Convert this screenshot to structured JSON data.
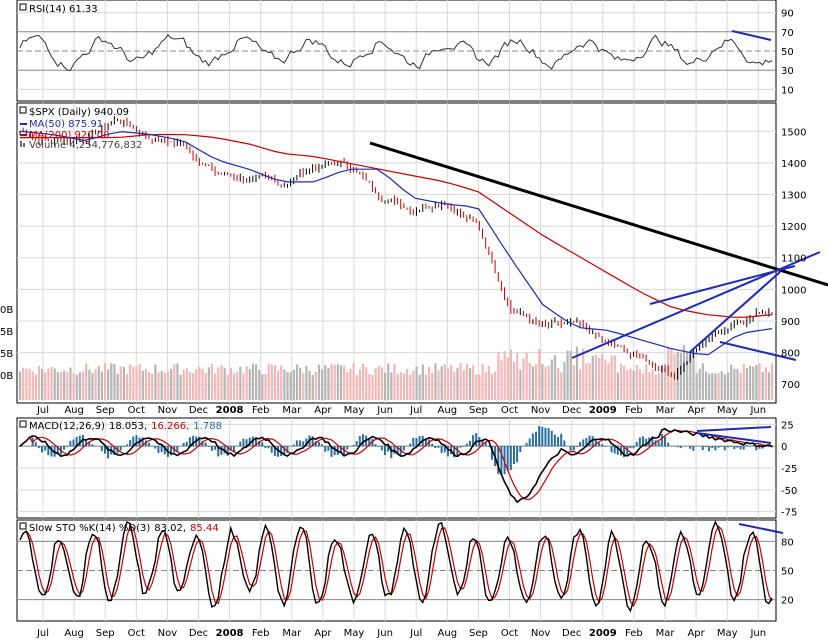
{
  "chart_data": [
    {
      "type": "line",
      "panel": "rsi",
      "title": "RSI(14) 61.33",
      "y_ticks": [
        90,
        70,
        50,
        30,
        10
      ],
      "ylim": [
        0,
        100
      ],
      "reference_lines": [
        70,
        50,
        30
      ],
      "series": [
        {
          "name": "RSI(14)",
          "last": 61.33
        }
      ],
      "annotations": [
        {
          "type": "trendline",
          "color": "#1e2bb4",
          "description": "downward divergence line at right"
        }
      ]
    },
    {
      "type": "line",
      "panel": "price",
      "title": "$SPX (Daily) 940.09",
      "y_ticks": [
        1500,
        1400,
        1300,
        1200,
        1100,
        1000,
        900,
        800,
        700
      ],
      "volume_ticks": [
        "0B",
        "5B",
        "5B",
        "0B"
      ],
      "ylim": [
        650,
        1580
      ],
      "legend": [
        {
          "label": "$SPX (Daily) 940.09",
          "color": "#000000"
        },
        {
          "label": "MA(50) 875.91",
          "color": "#1e2bb4"
        },
        {
          "label": "MA(200) 920.00",
          "color": "#cc0000"
        },
        {
          "label": "Volume 4,254,776,832",
          "color": "#666666"
        }
      ],
      "x": [
        "Jul",
        "Aug",
        "Sep",
        "Oct",
        "Nov",
        "Dec",
        "2008",
        "Feb",
        "Mar",
        "Apr",
        "May",
        "Jun",
        "Jul",
        "Aug",
        "Sep",
        "Oct",
        "Nov",
        "Dec",
        "2009",
        "Feb",
        "Mar",
        "Apr",
        "May",
        "Jun"
      ],
      "price_monthly": [
        1500,
        1470,
        1480,
        1540,
        1480,
        1460,
        1370,
        1350,
        1330,
        1390,
        1400,
        1300,
        1260,
        1290,
        1200,
        950,
        880,
        880,
        820,
        780,
        740,
        840,
        910,
        940
      ],
      "ma50_monthly": [
        1500,
        1490,
        1470,
        1500,
        1490,
        1470,
        1410,
        1380,
        1340,
        1340,
        1380,
        1380,
        1290,
        1270,
        1260,
        1100,
        950,
        880,
        870,
        840,
        810,
        790,
        860,
        876
      ],
      "ma200_monthly": [
        1480,
        1480,
        1480,
        1480,
        1490,
        1490,
        1480,
        1460,
        1430,
        1420,
        1400,
        1380,
        1360,
        1340,
        1310,
        1240,
        1170,
        1110,
        1050,
        990,
        940,
        920,
        910,
        920
      ],
      "annotations": [
        {
          "type": "trendline",
          "color": "#000000",
          "description": "long-term downtrend line from May 2008 highs"
        },
        {
          "type": "wedge",
          "color": "#1e2bb4",
          "description": "rising wedge lines Nov 2008 to Jun 2009"
        },
        {
          "type": "trendline",
          "color": "#1e2bb4",
          "description": "declining volume line Apr to Jun 2009"
        }
      ]
    },
    {
      "type": "line",
      "panel": "macd",
      "title": "MACD(12,26,9) 18.053, 16.266, 1.788",
      "y_ticks": [
        "25",
        "0",
        "-25",
        "-50",
        "-75"
      ],
      "ylim": [
        -80,
        30
      ],
      "series": [
        {
          "name": "MACD(12,26,9)",
          "last": 18.053,
          "color": "#000000"
        },
        {
          "name": "signal",
          "last": 16.266,
          "color": "#cc0000"
        },
        {
          "name": "histogram",
          "last": 1.788,
          "color": "#2a6ea0"
        }
      ],
      "annotations": [
        {
          "type": "divergence_lines",
          "color": "#1e2bb4",
          "description": "converging lines at right"
        }
      ]
    },
    {
      "type": "line",
      "panel": "stochastic",
      "title": "Slow STO %K(14) %D(3) 83.02, 85.44",
      "y_ticks": [
        80,
        50,
        20
      ],
      "ylim": [
        0,
        100
      ],
      "reference_lines": [
        80,
        50,
        20
      ],
      "series": [
        {
          "name": "%K(14)",
          "last": 83.02,
          "color": "#000000"
        },
        {
          "name": "%D(3)",
          "last": 85.44,
          "color": "#cc0000"
        }
      ],
      "annotations": [
        {
          "type": "trendline",
          "color": "#1e2bb4",
          "description": "downward divergence line at right"
        }
      ]
    }
  ],
  "labels": {
    "rsi_title": "RSI(14) 61.33",
    "price_title": "$SPX (Daily) 940.09",
    "ma50": "MA(50) 875.91",
    "ma200": "MA(200) 920.00",
    "volume": "Volume 4,254,776,832",
    "macd_name": "MACD(12,26,9)",
    "macd_v1": "18.053,",
    "macd_v2": "16.266,",
    "macd_v3": "1.788",
    "sto_name": "Slow STO %K(14) %D(3)",
    "sto_v1": "83.02,",
    "sto_v2": "85.44"
  }
}
